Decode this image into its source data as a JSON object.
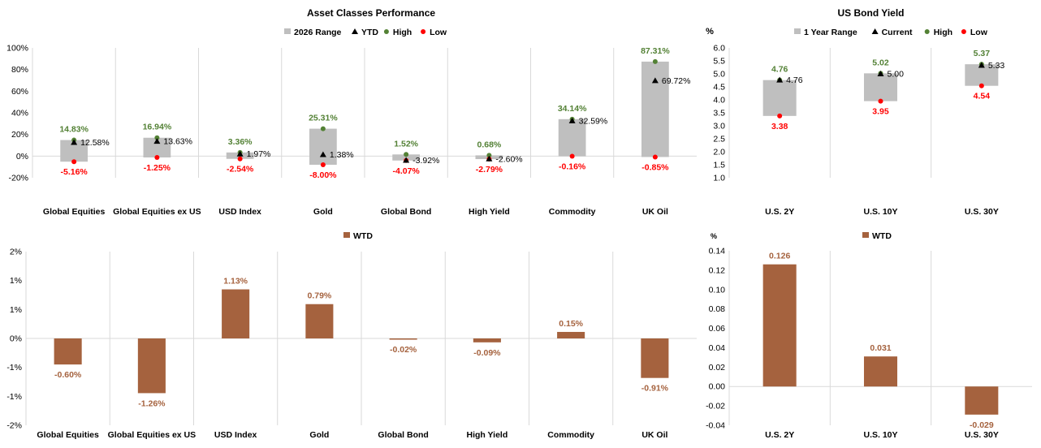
{
  "chart_data": [
    {
      "id": "asset-range",
      "type": "range",
      "title": "Asset Classes Performance",
      "ylabel": "",
      "legend": [
        "2026 Range",
        "YTD",
        "High",
        "Low"
      ],
      "ylim": [
        -20,
        100
      ],
      "yticks": [
        "-20%",
        "0%",
        "20%",
        "40%",
        "60%",
        "80%",
        "100%"
      ],
      "categories": [
        "Global Equities",
        "Global Equities ex US",
        "USD Index",
        "Gold",
        "Global Bond",
        "High Yield",
        "Commodity",
        "UK Oil"
      ],
      "high": [
        14.83,
        16.94,
        3.36,
        25.31,
        1.52,
        0.68,
        34.14,
        87.31
      ],
      "low": [
        -5.16,
        -1.25,
        -2.54,
        -8.0,
        -4.07,
        -2.79,
        -0.16,
        -0.85
      ],
      "ytd": [
        12.58,
        13.63,
        1.97,
        1.38,
        -3.92,
        -2.6,
        32.59,
        69.72
      ],
      "high_labels": [
        "14.83%",
        "16.94%",
        "3.36%",
        "25.31%",
        "1.52%",
        "0.68%",
        "34.14%",
        "87.31%"
      ],
      "low_labels": [
        "-5.16%",
        "-1.25%",
        "-2.54%",
        "-8.00%",
        "-4.07%",
        "-2.79%",
        "-0.16%",
        "-0.85%"
      ],
      "ytd_labels": [
        "12.58%",
        "13.63%",
        "1.97%",
        "1.38%",
        "-3.92%",
        "-2.60%",
        "32.59%",
        "69.72%"
      ]
    },
    {
      "id": "bond-range",
      "type": "range",
      "title": "US Bond Yield",
      "ylabel": "%",
      "legend": [
        "1 Year Range",
        "Current",
        "High",
        "Low"
      ],
      "ylim": [
        1.0,
        6.0
      ],
      "yticks": [
        "1.0",
        "1.5",
        "2.0",
        "2.5",
        "3.0",
        "3.5",
        "4.0",
        "4.5",
        "5.0",
        "5.5",
        "6.0"
      ],
      "categories": [
        "U.S. 2Y",
        "U.S. 10Y",
        "U.S. 30Y"
      ],
      "high": [
        4.76,
        5.02,
        5.37
      ],
      "low": [
        3.38,
        3.95,
        4.54
      ],
      "ytd": [
        4.76,
        5.0,
        5.33
      ],
      "high_labels": [
        "4.76",
        "5.02",
        "5.37"
      ],
      "low_labels": [
        "3.38",
        "3.95",
        "4.54"
      ],
      "ytd_labels": [
        "4.76",
        "5.00",
        "5.33"
      ]
    },
    {
      "id": "asset-wtd",
      "type": "bar",
      "title": "",
      "ylabel": "",
      "legend": [
        "WTD"
      ],
      "ylim": [
        -2,
        2
      ],
      "yticks": [
        "-2%",
        "-1%",
        "-1%",
        "0%",
        "1%",
        "1%",
        "2%"
      ],
      "categories": [
        "Global Equities",
        "Global Equities ex US",
        "USD Index",
        "Gold",
        "Global Bond",
        "High Yield",
        "Commodity",
        "UK Oil"
      ],
      "values": [
        -0.6,
        -1.26,
        1.13,
        0.79,
        -0.02,
        -0.09,
        0.15,
        -0.91
      ],
      "labels": [
        "-0.60%",
        "-1.26%",
        "1.13%",
        "0.79%",
        "-0.02%",
        "-0.09%",
        "0.15%",
        "-0.91%"
      ]
    },
    {
      "id": "bond-wtd",
      "type": "bar",
      "title": "",
      "ylabel": "%",
      "legend": [
        "WTD"
      ],
      "ylim": [
        -0.04,
        0.14
      ],
      "yticks": [
        "-0.04",
        "-0.02",
        "0.00",
        "0.02",
        "0.04",
        "0.06",
        "0.08",
        "0.10",
        "0.12",
        "0.14"
      ],
      "categories": [
        "U.S. 2Y",
        "U.S. 10Y",
        "U.S. 30Y"
      ],
      "values": [
        0.126,
        0.031,
        -0.029
      ],
      "labels": [
        "0.126",
        "0.031",
        "-0.029"
      ]
    }
  ],
  "colors": {
    "range": "#bfbfbf",
    "high": "#538135",
    "low": "#ff0000",
    "ytd": "#000000",
    "bar": "#a5623e",
    "grid": "#d9d9d9",
    "axis": "#000000"
  }
}
